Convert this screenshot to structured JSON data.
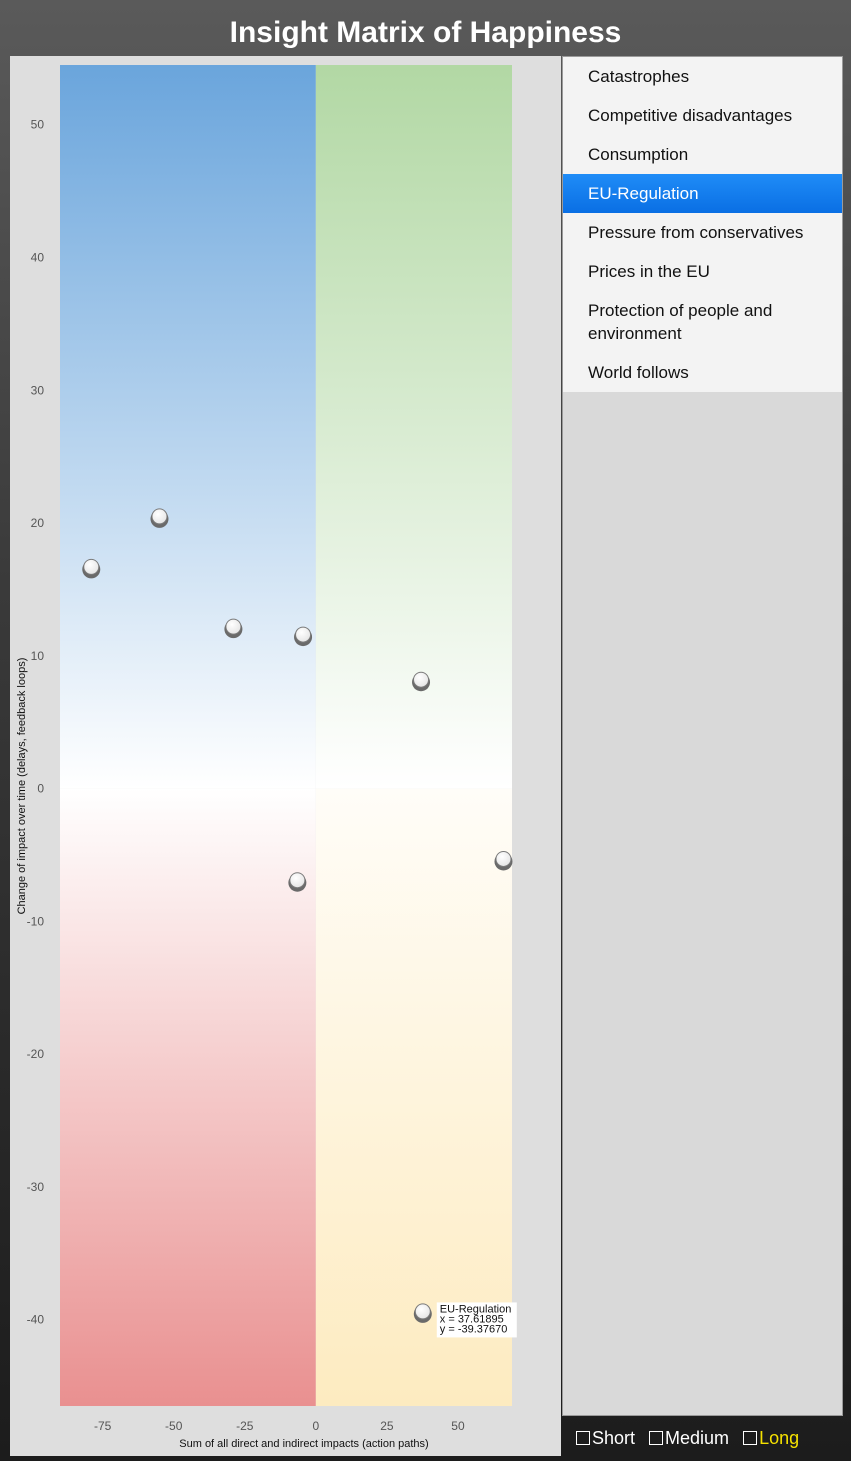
{
  "title": "Insight Matrix of Happiness",
  "chart_data": {
    "type": "scatter",
    "xlabel": "Sum of all direct and indirect impacts (action paths)",
    "ylabel": "Change of impact over time (delays, feedback loops)",
    "xlim": [
      -90,
      69
    ],
    "ylim": [
      -46.5,
      54.5
    ],
    "xticks": [
      -75,
      -50,
      -25,
      0,
      25,
      50
    ],
    "yticks": [
      50,
      40,
      30,
      20,
      10,
      0,
      -10,
      -20,
      -30,
      -40
    ],
    "quadrant_colors": {
      "top_left": "#6aa5dc",
      "top_right": "#b2d8a4",
      "bottom_left": "#e99090",
      "bottom_right": "#fdebc0"
    },
    "points": [
      {
        "x": -79,
        "y": 16.7
      },
      {
        "x": -55,
        "y": 20.5
      },
      {
        "x": -29,
        "y": 12.2
      },
      {
        "x": -4.5,
        "y": 11.6
      },
      {
        "x": 37,
        "y": 8.2
      },
      {
        "x": -6.5,
        "y": -6.9
      },
      {
        "x": 66,
        "y": -5.3
      },
      {
        "x": 37.61895,
        "y": -39.3767,
        "label": "EU-Regulation",
        "x_text": "x = 37.61895",
        "y_text": "y = -39.37670"
      }
    ]
  },
  "sidebar": {
    "items": [
      {
        "label": "Catastrophes",
        "selected": false
      },
      {
        "label": "Competitive disadvantages",
        "selected": false
      },
      {
        "label": "Consumption",
        "selected": false
      },
      {
        "label": "EU-Regulation",
        "selected": true
      },
      {
        "label": "Pressure from conservatives",
        "selected": false
      },
      {
        "label": "Prices in the EU",
        "selected": false
      },
      {
        "label": "Protection of people and environment",
        "selected": false
      },
      {
        "label": "World follows",
        "selected": false
      }
    ]
  },
  "horizon": {
    "options": [
      {
        "label": "Short",
        "active": false
      },
      {
        "label": "Medium",
        "active": false
      },
      {
        "label": "Long",
        "active": true
      }
    ]
  }
}
